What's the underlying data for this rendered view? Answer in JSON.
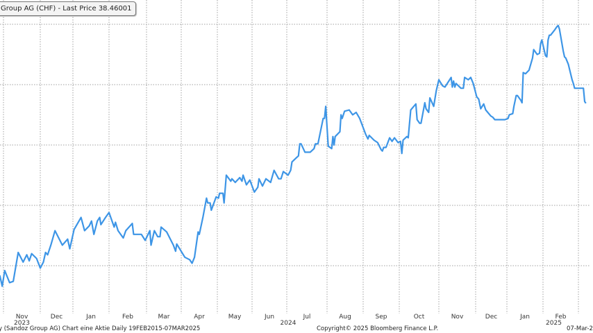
{
  "legend": {
    "label": "Group AG (CHF) - Last Price 38.46001"
  },
  "footer": {
    "left": "y (Sandoz Group AG) Chart eine Aktie  Daily 19FEB2015-07MAR2025",
    "center": "Copyright© 2025 Bloomberg Finance L.P.",
    "right": "07-Mar-2"
  },
  "colors": {
    "line": "#3d95e6",
    "grid": "#a0a0a0"
  },
  "chart_data": {
    "type": "line",
    "title": "",
    "xlabel": "",
    "ylabel": "",
    "ylim": [
      21,
      47
    ],
    "y_gridlines": [
      25,
      30,
      35,
      40,
      45
    ],
    "y_tick_labels_shown": false,
    "grid": true,
    "legend": "top-left",
    "x_tick_labels": [
      {
        "month": "2023-11",
        "label": "Nov",
        "year": "2023"
      },
      {
        "month": "2023-12",
        "label": "Dec"
      },
      {
        "month": "2024-01",
        "label": "Jan"
      },
      {
        "month": "2024-02",
        "label": "Feb"
      },
      {
        "month": "2024-03",
        "label": "Mar"
      },
      {
        "month": "2024-04",
        "label": "Apr"
      },
      {
        "month": "2024-05",
        "label": "May"
      },
      {
        "month": "2024-06",
        "label": "Jun"
      },
      {
        "month": "2024-07",
        "label": "Jul",
        "year": "2024"
      },
      {
        "month": "2024-08",
        "label": "Aug"
      },
      {
        "month": "2024-09",
        "label": "Sep"
      },
      {
        "month": "2024-10",
        "label": "Oct"
      },
      {
        "month": "2024-11",
        "label": "Nov"
      },
      {
        "month": "2024-12",
        "label": "Dec"
      },
      {
        "month": "2025-01",
        "label": "Jan"
      },
      {
        "month": "2025-02",
        "label": "Feb",
        "year": "2025"
      }
    ],
    "series": [
      {
        "name": "Last Price",
        "x": [
          "2023-10-29",
          "2023-10-31",
          "2023-11-02",
          "2023-11-06",
          "2023-11-09",
          "2023-11-13",
          "2023-11-17",
          "2023-11-20",
          "2023-11-22",
          "2023-11-24",
          "2023-11-28",
          "2023-12-01",
          "2023-12-04",
          "2023-12-06",
          "2023-12-08",
          "2023-12-11",
          "2023-12-15",
          "2023-12-22",
          "2023-12-27",
          "2023-12-29",
          "2024-01-02",
          "2024-01-08",
          "2024-01-11",
          "2024-01-15",
          "2024-01-17",
          "2024-01-19",
          "2024-01-22",
          "2024-01-24",
          "2024-01-25",
          "2024-01-29",
          "2024-02-01",
          "2024-02-05",
          "2024-02-06",
          "2024-02-08",
          "2024-02-12",
          "2024-02-14",
          "2024-02-19",
          "2024-02-20",
          "2024-02-26",
          "2024-02-29",
          "2024-03-04",
          "2024-03-05",
          "2024-03-08",
          "2024-03-11",
          "2024-03-13",
          "2024-03-14",
          "2024-03-19",
          "2024-03-25",
          "2024-03-27",
          "2024-03-28",
          "2024-04-04",
          "2024-04-08",
          "2024-04-10",
          "2024-04-12",
          "2024-04-15",
          "2024-04-16",
          "2024-04-19",
          "2024-04-22",
          "2024-04-23",
          "2024-04-25",
          "2024-04-26",
          "2024-04-30",
          "2024-05-02",
          "2024-05-03",
          "2024-05-06",
          "2024-05-07",
          "2024-05-09",
          "2024-05-13",
          "2024-05-14",
          "2024-05-17",
          "2024-05-21",
          "2024-05-23",
          "2024-05-24",
          "2024-05-27",
          "2024-05-30",
          "2024-06-03",
          "2024-06-06",
          "2024-06-07",
          "2024-06-10",
          "2024-06-13",
          "2024-06-17",
          "2024-06-20",
          "2024-06-24",
          "2024-06-26",
          "2024-06-28",
          "2024-07-02",
          "2024-07-04",
          "2024-07-05",
          "2024-07-08",
          "2024-07-10",
          "2024-07-11",
          "2024-07-12",
          "2024-07-15",
          "2024-07-19",
          "2024-07-22",
          "2024-07-23",
          "2024-07-25",
          "2024-07-29",
          "2024-07-30",
          "2024-07-31",
          "2024-08-02",
          "2024-08-05",
          "2024-08-06",
          "2024-08-07",
          "2024-08-08",
          "2024-08-12",
          "2024-08-13",
          "2024-08-14",
          "2024-08-16",
          "2024-08-20",
          "2024-08-23",
          "2024-08-26",
          "2024-08-29",
          "2024-09-03",
          "2024-09-05",
          "2024-09-06",
          "2024-09-10",
          "2024-09-13",
          "2024-09-16",
          "2024-09-17",
          "2024-09-18",
          "2024-09-20",
          "2024-09-23",
          "2024-09-25",
          "2024-09-27",
          "2024-09-30",
          "2024-10-02",
          "2024-10-03",
          "2024-10-04",
          "2024-10-07",
          "2024-10-08",
          "2024-10-10",
          "2024-10-14",
          "2024-10-15",
          "2024-10-17",
          "2024-10-18",
          "2024-10-21",
          "2024-10-22",
          "2024-10-24",
          "2024-10-25",
          "2024-10-28",
          "2024-10-30",
          "2024-11-01",
          "2024-11-04",
          "2024-11-06",
          "2024-11-11",
          "2024-11-12",
          "2024-11-13",
          "2024-11-14",
          "2024-11-15",
          "2024-11-19",
          "2024-11-21",
          "2024-11-22",
          "2024-11-25",
          "2024-11-27",
          "2024-11-29",
          "2024-12-02",
          "2024-12-04",
          "2024-12-06",
          "2024-12-09",
          "2024-12-11",
          "2024-12-16",
          "2024-12-18",
          "2024-12-20",
          "2024-12-27",
          "2024-12-30",
          "2025-01-02",
          "2025-01-03",
          "2025-01-06",
          "2025-01-07",
          "2025-01-09",
          "2025-01-10",
          "2025-01-13",
          "2025-01-14",
          "2025-01-15",
          "2025-01-17",
          "2025-01-20",
          "2025-01-23",
          "2025-01-24",
          "2025-01-27",
          "2025-01-29",
          "2025-01-30",
          "2025-01-31",
          "2025-02-03",
          "2025-02-04",
          "2025-02-05",
          "2025-02-06",
          "2025-02-07",
          "2025-02-10",
          "2025-02-12",
          "2025-02-13",
          "2025-02-14",
          "2025-02-17",
          "2025-02-18",
          "2025-02-19",
          "2025-02-21",
          "2025-02-24",
          "2025-02-25",
          "2025-02-26",
          "2025-02-28",
          "2025-03-03",
          "2025-03-04",
          "2025-03-05",
          "2025-03-06",
          "2025-03-07"
        ],
        "y": [
          24.2,
          23.3,
          24.6,
          23.6,
          23.7,
          26.1,
          25.3,
          25.9,
          25.4,
          26.0,
          25.6,
          24.8,
          25.3,
          26.1,
          25.9,
          26.7,
          27.9,
          26.7,
          27.2,
          26.4,
          28.0,
          29.0,
          27.9,
          28.3,
          28.7,
          27.6,
          28.7,
          29.0,
          28.4,
          29.0,
          29.4,
          28.2,
          28.6,
          27.9,
          27.3,
          27.9,
          28.5,
          27.6,
          27.6,
          27.1,
          27.9,
          26.7,
          27.9,
          27.4,
          27.4,
          28.2,
          27.8,
          26.7,
          26.2,
          26.8,
          25.7,
          25.5,
          25.2,
          25.7,
          27.8,
          27.6,
          29.0,
          30.6,
          30.2,
          30.2,
          29.6,
          30.7,
          30.6,
          31.0,
          31.0,
          30.2,
          32.5,
          32.0,
          32.2,
          31.9,
          32.3,
          32.0,
          32.5,
          31.7,
          32.1,
          31.1,
          31.5,
          32.2,
          31.6,
          32.2,
          31.9,
          32.9,
          32.2,
          32.2,
          32.8,
          32.5,
          32.9,
          33.6,
          33.9,
          34.1,
          35.1,
          35.1,
          34.4,
          34.4,
          34.7,
          35.1,
          35.1,
          37.2,
          37.2,
          38.2,
          34.9,
          34.7,
          35.7,
          35.0,
          35.7,
          36.1,
          37.5,
          37.2,
          37.8,
          37.9,
          37.5,
          37.7,
          37.2,
          35.9,
          35.5,
          35.8,
          35.4,
          35.2,
          34.6,
          34.5,
          34.8,
          34.8,
          35.6,
          35.3,
          35.6,
          35.2,
          35.3,
          34.3,
          35.4,
          35.7,
          35.6,
          37.9,
          38.4,
          37.1,
          36.8,
          36.8,
          38.5,
          38.0,
          37.7,
          38.9,
          38.2,
          39.5,
          40.4,
          39.9,
          39.8,
          40.6,
          39.8,
          40.3,
          39.8,
          40.1,
          39.7,
          39.7,
          40.6,
          40.4,
          40.6,
          40.1,
          39.0,
          38.8,
          38.0,
          38.4,
          37.9,
          37.4,
          37.3,
          37.1,
          37.1,
          37.1,
          37.2,
          37.5,
          37.6,
          38.2,
          39.1,
          39.1,
          38.7,
          38.5,
          41.0,
          40.9,
          41.2,
          42.2,
          42.9,
          42.5,
          42.6,
          43.4,
          43.7,
          42.4,
          42.3,
          43.7,
          44.1,
          44.1,
          44.5,
          44.8,
          44.9,
          44.6,
          42.8,
          42.3,
          42.2,
          41.7,
          40.4,
          40.1,
          39.7,
          39.7,
          39.7,
          39.7,
          39.7,
          38.6,
          38.46
        ]
      }
    ]
  }
}
